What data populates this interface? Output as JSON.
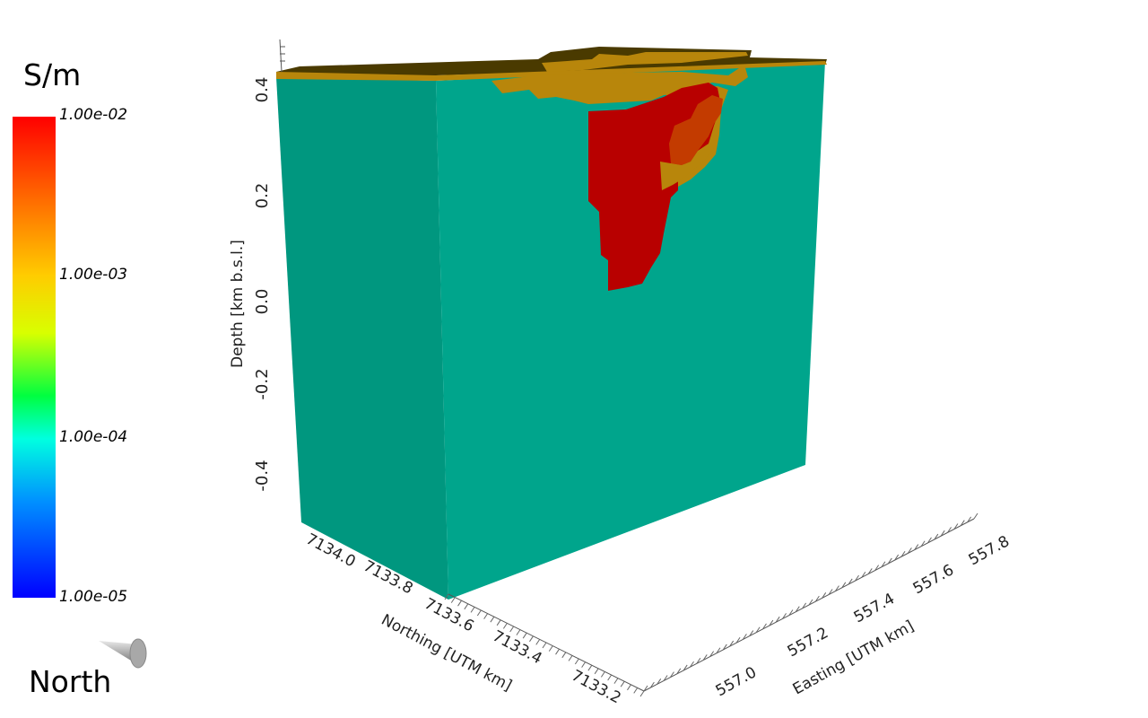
{
  "legend": {
    "unit": "S/m",
    "ticks": [
      "1.00e-02",
      "1.00e-03",
      "1.00e-04",
      "1.00e-05"
    ],
    "scale": "log",
    "colormap": [
      "#ff0000",
      "#ff7a00",
      "#ffd000",
      "#d8ff00",
      "#00ff30",
      "#00ffe0",
      "#009bff",
      "#0000ff"
    ]
  },
  "orientation": {
    "label": "North"
  },
  "axes": {
    "depth": {
      "label": "Depth [km  b.s.l.]",
      "ticks": [
        "0.4",
        "0.2",
        "0.0",
        "-0.2",
        "-0.4"
      ]
    },
    "northing": {
      "label": "Northing [UTM  km]",
      "ticks": [
        "7134.0",
        "7133.8",
        "7133.6",
        "7133.4",
        "7133.2"
      ]
    },
    "easting": {
      "label": "Easting [UTM km]",
      "ticks": [
        "557.0",
        "557.2",
        "557.4",
        "557.6",
        "557.8"
      ]
    }
  },
  "colors": {
    "background_conductivity": "#00a58c",
    "shaded_face": "#00977f",
    "surface_layer": "#b8860b",
    "surface_top": "#4a3a00",
    "anomaly_high": "#b80000",
    "anomaly_core": "#c33b00",
    "axis_line": "#555555"
  }
}
